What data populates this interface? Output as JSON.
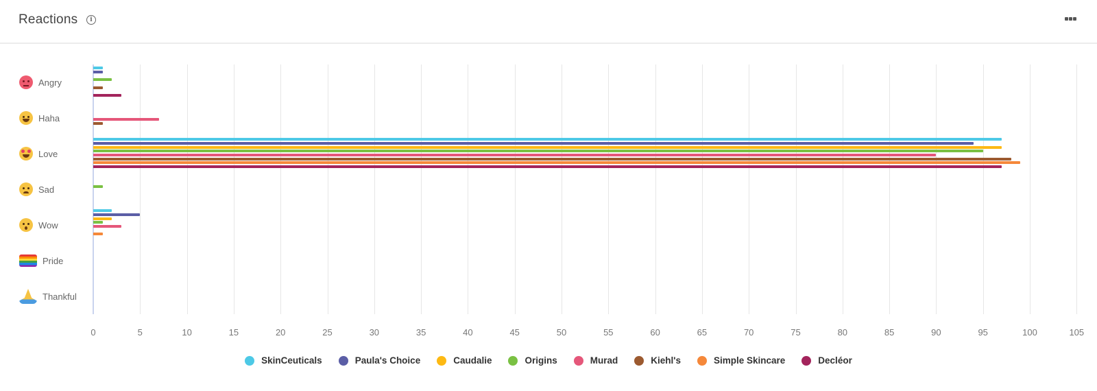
{
  "header": {
    "title": "Reactions",
    "info_icon": "info-icon",
    "menu_icon": "more-horizontal-icon"
  },
  "categories": [
    {
      "label": "Angry",
      "icon": "angry-face-emoji"
    },
    {
      "label": "Haha",
      "icon": "rolling-laughing-emoji"
    },
    {
      "label": "Love",
      "icon": "heart-eyes-emoji"
    },
    {
      "label": "Sad",
      "icon": "sad-tear-emoji"
    },
    {
      "label": "Wow",
      "icon": "surprised-face-emoji"
    },
    {
      "label": "Pride",
      "icon": "rainbow-flag-emoji"
    },
    {
      "label": "Thankful",
      "icon": "folded-hands-emoji"
    }
  ],
  "legend": [
    {
      "name": "SkinCeuticals",
      "color": "#4DC9E6"
    },
    {
      "name": "Paula's Choice",
      "color": "#5B5EA6"
    },
    {
      "name": "Caudalie",
      "color": "#FDB913"
    },
    {
      "name": "Origins",
      "color": "#7AC143"
    },
    {
      "name": "Murad",
      "color": "#E5577A"
    },
    {
      "name": "Kiehl's",
      "color": "#9C5A30"
    },
    {
      "name": "Simple Skincare",
      "color": "#F5883A"
    },
    {
      "name": "Decléor",
      "color": "#A3245C"
    }
  ],
  "chart_data": {
    "type": "bar",
    "orientation": "horizontal",
    "title": "Reactions",
    "xlabel": "",
    "ylabel": "",
    "xlim": [
      0,
      105
    ],
    "x_ticks": [
      0,
      5,
      10,
      15,
      20,
      25,
      30,
      35,
      40,
      45,
      50,
      55,
      60,
      65,
      70,
      75,
      80,
      85,
      90,
      95,
      100,
      105
    ],
    "grid": true,
    "legend_position": "bottom",
    "categories": [
      "Angry",
      "Haha",
      "Love",
      "Sad",
      "Wow",
      "Pride",
      "Thankful"
    ],
    "series": [
      {
        "name": "SkinCeuticals",
        "color": "#4DC9E6",
        "values": [
          1,
          0,
          97,
          0,
          2,
          0,
          0
        ]
      },
      {
        "name": "Paula's Choice",
        "color": "#5B5EA6",
        "values": [
          1,
          0,
          94,
          0,
          5,
          0,
          0
        ]
      },
      {
        "name": "Caudalie",
        "color": "#FDB913",
        "values": [
          0,
          0,
          97,
          0,
          2,
          0,
          0
        ]
      },
      {
        "name": "Origins",
        "color": "#7AC143",
        "values": [
          2,
          0,
          95,
          1,
          1,
          0,
          0
        ]
      },
      {
        "name": "Murad",
        "color": "#E5577A",
        "values": [
          0,
          7,
          90,
          0,
          3,
          0,
          0
        ]
      },
      {
        "name": "Kiehl's",
        "color": "#9C5A30",
        "values": [
          1,
          1,
          98,
          0,
          0,
          0,
          0
        ]
      },
      {
        "name": "Simple Skincare",
        "color": "#F5883A",
        "values": [
          0,
          0,
          99,
          0,
          1,
          0,
          0
        ]
      },
      {
        "name": "Decléor",
        "color": "#A3245C",
        "values": [
          3,
          0,
          97,
          0,
          0,
          0,
          0
        ]
      }
    ]
  }
}
